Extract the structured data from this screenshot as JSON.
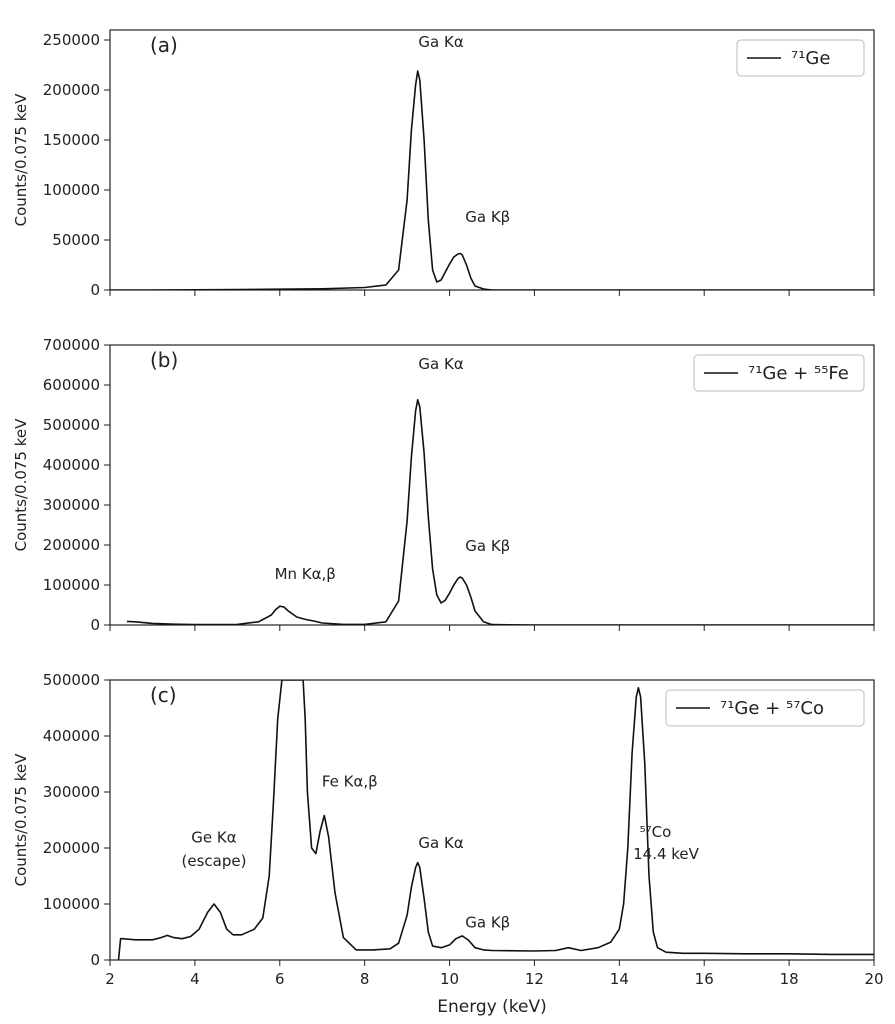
{
  "chart_data": [
    {
      "type": "line",
      "panel_label": "(a)",
      "legend": [
        "⁷¹Ge"
      ],
      "legend_placement": "top-right",
      "xlim": [
        2,
        20
      ],
      "ylim": [
        0,
        260000
      ],
      "yticks": [
        0,
        50000,
        100000,
        150000,
        200000,
        250000
      ],
      "ylabel": "Counts/0.075 keV",
      "xlabel": "",
      "series": [
        {
          "x": [
            2.0,
            3.0,
            4.0,
            5.0,
            6.0,
            7.0,
            8.0,
            8.5,
            8.8,
            9.0,
            9.1,
            9.2,
            9.25,
            9.3,
            9.4,
            9.5,
            9.6,
            9.7,
            9.8,
            9.9,
            10.0,
            10.1,
            10.2,
            10.25,
            10.3,
            10.4,
            10.5,
            10.6,
            10.8,
            11.0,
            12.0,
            14.0,
            16.0,
            18.0,
            20.0
          ],
          "y": [
            0,
            0,
            200,
            400,
            800,
            1200,
            2500,
            5000,
            20000,
            90000,
            160000,
            205000,
            219000,
            210000,
            150000,
            70000,
            20000,
            8000,
            10000,
            18000,
            26000,
            33000,
            36000,
            36500,
            35000,
            25000,
            12000,
            4000,
            1000,
            0,
            0,
            0,
            0,
            0,
            0
          ]
        }
      ],
      "annotations": [
        {
          "text": "Ga Kα",
          "x": 9.8,
          "y": 243000
        },
        {
          "text": "Ga Kβ",
          "x": 10.9,
          "y": 68000
        }
      ]
    },
    {
      "type": "line",
      "panel_label": "(b)",
      "legend": [
        "⁷¹Ge + ⁵⁵Fe"
      ],
      "legend_placement": "top-right",
      "xlim": [
        2,
        20
      ],
      "ylim": [
        0,
        700000
      ],
      "yticks": [
        0,
        100000,
        200000,
        300000,
        400000,
        500000,
        600000,
        700000
      ],
      "ylabel": "Counts/0.075 keV",
      "xlabel": "",
      "series": [
        {
          "x": [
            2.4,
            2.6,
            3.0,
            3.5,
            4.0,
            4.5,
            5.0,
            5.5,
            5.8,
            5.9,
            6.0,
            6.1,
            6.2,
            6.4,
            6.6,
            6.8,
            7.0,
            7.5,
            8.0,
            8.5,
            8.8,
            9.0,
            9.1,
            9.2,
            9.25,
            9.3,
            9.4,
            9.5,
            9.6,
            9.7,
            9.8,
            9.9,
            10.0,
            10.1,
            10.2,
            10.25,
            10.3,
            10.4,
            10.5,
            10.6,
            10.8,
            11.0,
            12.0,
            14.0,
            16.0,
            18.0,
            20.0
          ],
          "y": [
            9000,
            8000,
            4000,
            2000,
            1000,
            1000,
            1500,
            8000,
            25000,
            38000,
            47000,
            45000,
            35000,
            20000,
            14000,
            10000,
            5000,
            1500,
            1500,
            8000,
            60000,
            260000,
            420000,
            535000,
            563000,
            545000,
            430000,
            270000,
            140000,
            75000,
            55000,
            62000,
            80000,
            100000,
            116000,
            120000,
            117000,
            100000,
            70000,
            35000,
            8000,
            1000,
            0,
            0,
            0,
            0,
            0
          ]
        }
      ],
      "annotations": [
        {
          "text": "Ga Kα",
          "x": 9.8,
          "y": 640000
        },
        {
          "text": "Ga Kβ",
          "x": 10.9,
          "y": 185000
        },
        {
          "text": "Mn Kα,β",
          "x": 6.6,
          "y": 115000
        }
      ]
    },
    {
      "type": "line",
      "panel_label": "(c)",
      "legend": [
        "⁷¹Ge + ⁵⁷Co"
      ],
      "legend_placement": "top-right",
      "xlim": [
        2,
        20
      ],
      "ylim": [
        0,
        500000
      ],
      "yticks": [
        0,
        100000,
        200000,
        300000,
        400000,
        500000
      ],
      "xticks": [
        2,
        4,
        6,
        8,
        10,
        12,
        14,
        16,
        18,
        20
      ],
      "ylabel": "Counts/0.075 keV",
      "xlabel": "Energy (keV)",
      "series": [
        {
          "x": [
            2.2,
            2.25,
            2.3,
            2.6,
            3.0,
            3.2,
            3.35,
            3.5,
            3.7,
            3.9,
            4.1,
            4.3,
            4.45,
            4.6,
            4.75,
            4.9,
            5.1,
            5.4,
            5.6,
            5.75,
            5.85,
            5.95,
            6.05,
            6.2,
            6.55,
            6.6,
            6.65,
            6.75,
            6.85,
            6.95,
            7.05,
            7.15,
            7.3,
            7.5,
            7.8,
            8.2,
            8.6,
            8.8,
            9.0,
            9.1,
            9.2,
            9.25,
            9.3,
            9.4,
            9.5,
            9.6,
            9.8,
            10.0,
            10.15,
            10.3,
            10.45,
            10.6,
            10.8,
            11.0,
            12.0,
            12.5,
            12.8,
            13.1,
            13.5,
            13.8,
            14.0,
            14.1,
            14.2,
            14.3,
            14.4,
            14.45,
            14.5,
            14.6,
            14.7,
            14.8,
            14.9,
            15.1,
            15.5,
            16.0,
            17.0,
            18.0,
            19.0,
            20.0
          ],
          "y": [
            0,
            38000,
            38000,
            36000,
            36000,
            40000,
            44000,
            40000,
            38000,
            42000,
            55000,
            85000,
            100000,
            85000,
            55000,
            45000,
            45000,
            55000,
            75000,
            150000,
            280000,
            430000,
            500000,
            500000,
            500000,
            430000,
            300000,
            200000,
            190000,
            230000,
            258000,
            220000,
            120000,
            40000,
            18000,
            18000,
            20000,
            30000,
            80000,
            130000,
            165000,
            174000,
            165000,
            110000,
            50000,
            25000,
            22000,
            27000,
            38000,
            43000,
            35000,
            22000,
            18000,
            17000,
            16000,
            17000,
            22000,
            17000,
            22000,
            32000,
            55000,
            100000,
            200000,
            370000,
            470000,
            486000,
            470000,
            350000,
            150000,
            50000,
            22000,
            14000,
            12000,
            12000,
            11000,
            11000,
            10000,
            10000
          ]
        }
      ],
      "annotations": [
        {
          "text": "Ge Kα",
          "x": 4.45,
          "y": 210000
        },
        {
          "text": "(escape)",
          "x": 4.45,
          "y": 168000
        },
        {
          "text": "Fe Kα,β",
          "x": 7.65,
          "y": 310000
        },
        {
          "text": "Ga Kα",
          "x": 9.8,
          "y": 200000
        },
        {
          "text": "Ga Kβ",
          "x": 10.9,
          "y": 58000
        },
        {
          "text": "⁵⁷Co",
          "x": 14.85,
          "y": 220000
        },
        {
          "text": "14.4 keV",
          "x": 15.1,
          "y": 180000
        }
      ]
    }
  ]
}
